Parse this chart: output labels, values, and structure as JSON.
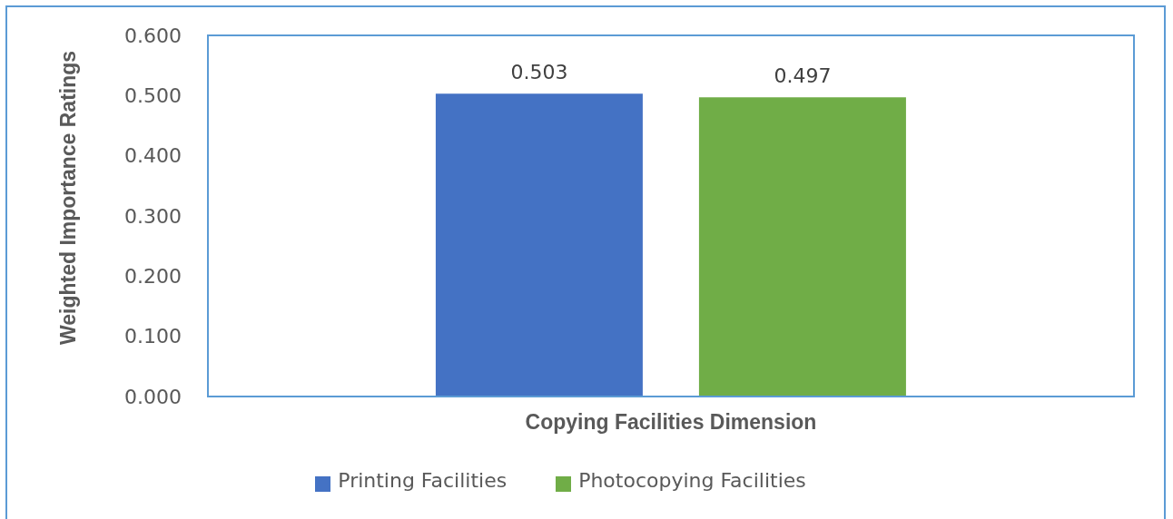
{
  "chart_data": {
    "type": "bar",
    "categories": [
      null
    ],
    "series": [
      {
        "name": "Printing Facilities",
        "color": "#4472c4",
        "values": [
          0.503
        ]
      },
      {
        "name": "Photocopying Facilities",
        "color": "#70ad47",
        "values": [
          0.497
        ]
      }
    ],
    "xlabel": "Copying Facilities Dimension",
    "ylabel": "Weighted Importance Ratings",
    "ylim": [
      0,
      0.6
    ],
    "yticks": [
      {
        "value": 0,
        "label": "0.000"
      },
      {
        "value": 0.1,
        "label": "0.100"
      },
      {
        "value": 0.2,
        "label": "0.200"
      },
      {
        "value": 0.3,
        "label": "0.300"
      },
      {
        "value": 0.4,
        "label": "0.400"
      },
      {
        "value": 0.5,
        "label": "0.500"
      },
      {
        "value": 0.6,
        "label": "0.600"
      }
    ],
    "data_labels": true,
    "legend": "bottom",
    "grid": false
  }
}
